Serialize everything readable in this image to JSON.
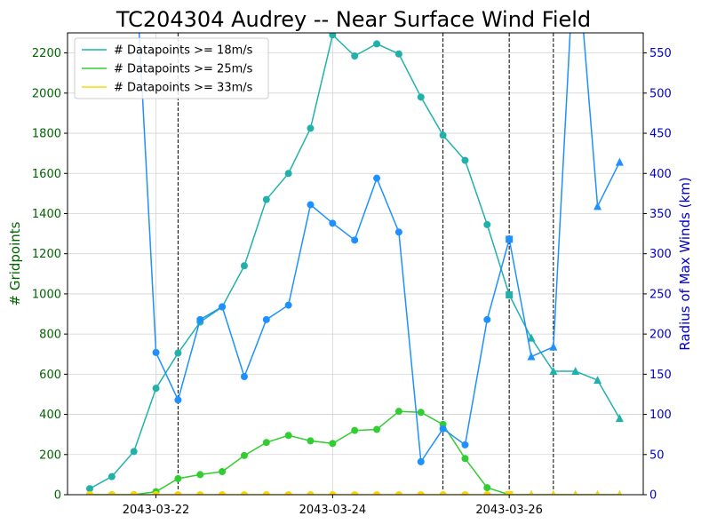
{
  "chart_data": {
    "type": "line",
    "title": "TC204304 Audrey -- Near Surface Wind Field",
    "ylabel_left": "# Gridpoints",
    "ylabel_right": "Radius of Max Winds (km)",
    "xlabel": "",
    "ylim_left": [
      0,
      2300
    ],
    "ylim_right": [
      0,
      575
    ],
    "left_ticks": [
      0,
      200,
      400,
      600,
      800,
      1000,
      1200,
      1400,
      1600,
      1800,
      2000,
      2200
    ],
    "right_ticks": [
      0,
      50,
      100,
      150,
      200,
      250,
      300,
      350,
      400,
      450,
      500,
      550
    ],
    "x_ticks": [
      "2043-03-22",
      "2043-03-24",
      "2043-03-26"
    ],
    "x_tick_steps": [
      3,
      11,
      19
    ],
    "x_step_count": 25,
    "grid": true,
    "legend_position": "top-left",
    "vertical_marker_steps": [
      4,
      16,
      19,
      21
    ],
    "colors": {
      "s18": "#20b2aa",
      "s25": "#32cd32",
      "s33": "#ffd700",
      "rmw": "#1e90ff",
      "left_axis": "#006400",
      "right_axis": "#0000cd"
    },
    "series": [
      {
        "name": "# Datapoints >= 18m/s",
        "axis": "left",
        "values": [
          30,
          90,
          215,
          530,
          705,
          860,
          935,
          1140,
          1470,
          1600,
          1825,
          2290,
          2185,
          2245,
          2195,
          1980,
          1790,
          1665,
          1345,
          995,
          780,
          615,
          615,
          570,
          380
        ]
      },
      {
        "name": "# Datapoints >= 25m/s",
        "axis": "left",
        "values": [
          0,
          0,
          0,
          15,
          80,
          100,
          115,
          195,
          260,
          295,
          268,
          255,
          320,
          325,
          415,
          410,
          350,
          180,
          35,
          0,
          0,
          0,
          0,
          0,
          0
        ]
      },
      {
        "name": "# Datapoints >= 33m/s",
        "axis": "left",
        "values": [
          0,
          0,
          0,
          0,
          0,
          0,
          0,
          0,
          0,
          0,
          0,
          0,
          0,
          0,
          0,
          0,
          0,
          0,
          0,
          0,
          0,
          0,
          0,
          0,
          0
        ]
      },
      {
        "axis": "right",
        "values": [
          null,
          null,
          700,
          177,
          118,
          218,
          234,
          147,
          218,
          236,
          361,
          338,
          317,
          394,
          327,
          41,
          82,
          62,
          218,
          318,
          172,
          184,
          700,
          359,
          414
        ]
      }
    ],
    "markers": [
      "circle",
      "circle",
      "circle",
      "circle",
      "circle",
      "circle",
      "circle",
      "circle",
      "circle",
      "circle",
      "circle",
      "circle",
      "circle",
      "circle",
      "circle",
      "circle",
      "circle",
      "circle",
      "circle",
      "square",
      "triangle",
      "triangle",
      "triangle",
      "triangle",
      "triangle"
    ]
  }
}
